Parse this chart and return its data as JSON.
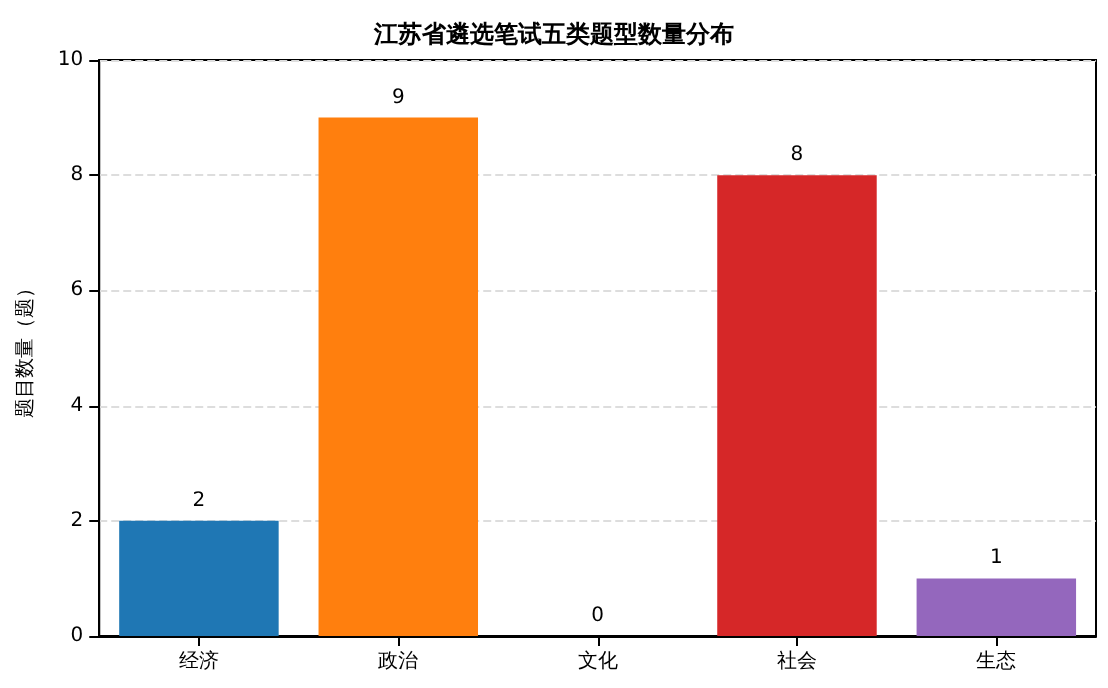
{
  "chart_data": {
    "type": "bar",
    "title": "江苏省遴选笔试五类题型数量分布",
    "ylabel": "题目数量（题）",
    "categories": [
      "经济",
      "政治",
      "文化",
      "社会",
      "生态"
    ],
    "values": [
      2,
      9,
      0,
      8,
      1
    ],
    "colors": [
      "#1f77b4",
      "#ff7f0e",
      "#2ca02c",
      "#d62728",
      "#9467bd"
    ],
    "ylim": [
      0,
      10
    ],
    "yticks": [
      0,
      2,
      4,
      6,
      8,
      10
    ],
    "grid": "y",
    "line_style": "dashed",
    "data_labels": true
  }
}
